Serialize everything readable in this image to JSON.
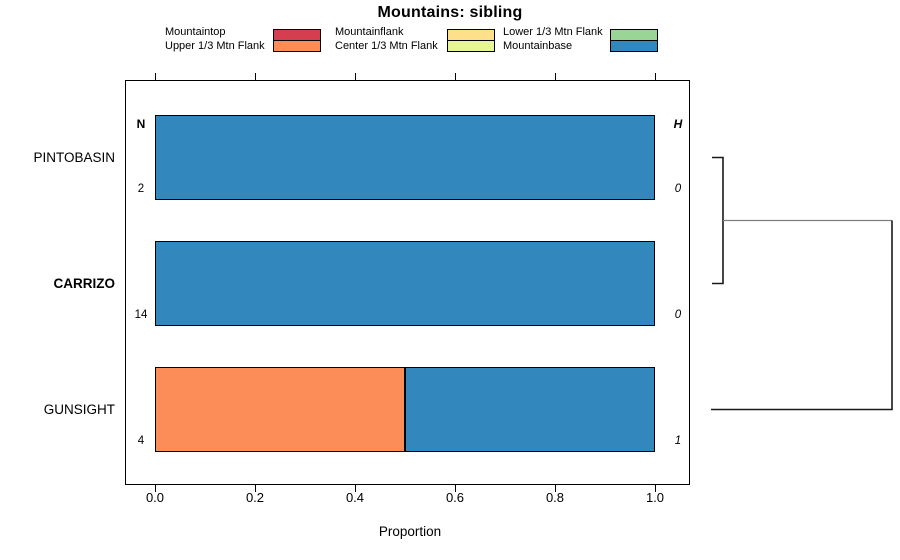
{
  "title": "Mountains: sibling",
  "chart_data": {
    "type": "bar",
    "orientation": "horizontal",
    "stacked": true,
    "title": "Mountains: sibling",
    "xlabel": "Proportion",
    "xlim": [
      0,
      1.08
    ],
    "xticks": [
      0,
      0.2,
      0.4,
      0.6,
      0.8,
      1.0
    ],
    "xtick_labels": [
      "0.0",
      "0.2",
      "0.4",
      "0.6",
      "0.8",
      "1.0"
    ],
    "grid": false,
    "legend_position": "top",
    "categories": [
      "PINTOBASIN",
      "CARRIZO",
      "GUNSIGHT"
    ],
    "emphasized_category": "CARRIZO",
    "series": [
      {
        "name": "Mountaintop",
        "color": "#D53E4F",
        "values": [
          0,
          0,
          0
        ]
      },
      {
        "name": "Upper 1/3 Mtn Flank",
        "color": "#FC8D59",
        "values": [
          0,
          0,
          0.5
        ]
      },
      {
        "name": "Mountainflank",
        "color": "#FEE08B",
        "values": [
          0,
          0,
          0
        ]
      },
      {
        "name": "Center 1/3 Mtn Flank",
        "color": "#E6F598",
        "values": [
          0,
          0,
          0
        ]
      },
      {
        "name": "Lower 1/3 Mtn Flank",
        "color": "#99D594",
        "values": [
          0,
          0,
          0
        ]
      },
      {
        "name": "Mountainbase",
        "color": "#3288BD",
        "values": [
          1.0,
          1.0,
          0.5
        ]
      }
    ],
    "row_annotations": {
      "left_header": "N",
      "right_header": "H",
      "n_values": [
        "2",
        "14",
        "4"
      ],
      "h_values": [
        "0",
        "0",
        "1"
      ]
    },
    "dendrogram": {
      "axis": "right",
      "merges": [
        {
          "members": [
            "PINTOBASIN",
            "CARRIZO"
          ],
          "height": 0
        },
        {
          "members": [
            "merge-1",
            "GUNSIGHT"
          ],
          "height": 1
        }
      ]
    }
  }
}
